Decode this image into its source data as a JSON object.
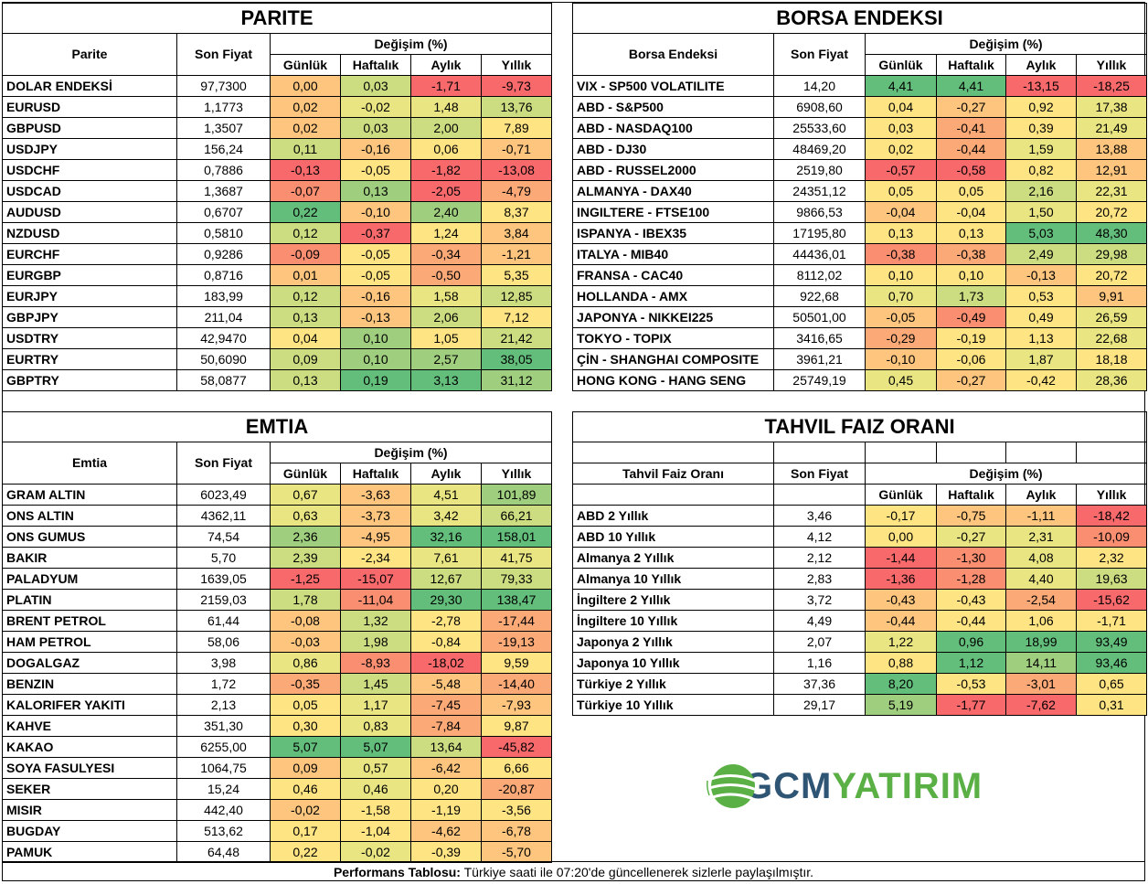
{
  "palette": {
    "R": "#F8696B",
    "R2": "#F98E71",
    "O": "#FBA977",
    "O2": "#FDC57D",
    "Y": "#FFE483",
    "YG": "#E8E582",
    "LG": "#CBDC81",
    "G": "#9FCF7E",
    "DG": "#63BE7B"
  },
  "common": {
    "son_fiyat": "Son Fiyat",
    "degisim": "Değişim (%)",
    "gunluk": "Günlük",
    "haftalik": "Haftalık",
    "aylik": "Aylık",
    "yillik": "Yıllık"
  },
  "parite": {
    "title": "PARITE",
    "col_name": "Parite",
    "rows": [
      {
        "name": "DOLAR ENDEKSİ",
        "price": "97,7300",
        "v": [
          "0,00",
          "0,03",
          "-1,71",
          "-9,73"
        ],
        "c": [
          "O2",
          "LG",
          "R",
          "R"
        ]
      },
      {
        "name": "EURUSD",
        "price": "1,1773",
        "v": [
          "0,02",
          "-0,02",
          "1,48",
          "13,76"
        ],
        "c": [
          "O2",
          "YG",
          "YG",
          "LG"
        ]
      },
      {
        "name": "GBPUSD",
        "price": "1,3507",
        "v": [
          "0,02",
          "0,03",
          "2,00",
          "7,89"
        ],
        "c": [
          "O2",
          "LG",
          "LG",
          "Y"
        ]
      },
      {
        "name": "USDJPY",
        "price": "156,24",
        "v": [
          "0,11",
          "-0,16",
          "0,06",
          "-0,71"
        ],
        "c": [
          "LG",
          "O2",
          "Y",
          "O2"
        ]
      },
      {
        "name": "USDCHF",
        "price": "0,7886",
        "v": [
          "-0,13",
          "-0,05",
          "-1,82",
          "-13,08"
        ],
        "c": [
          "R",
          "Y",
          "R",
          "R"
        ]
      },
      {
        "name": "USDCAD",
        "price": "1,3687",
        "v": [
          "-0,07",
          "0,13",
          "-2,05",
          "-4,79"
        ],
        "c": [
          "R2",
          "G",
          "R",
          "O"
        ]
      },
      {
        "name": "AUDUSD",
        "price": "0,6707",
        "v": [
          "0,22",
          "-0,10",
          "2,40",
          "8,37"
        ],
        "c": [
          "DG",
          "O2",
          "G",
          "Y"
        ]
      },
      {
        "name": "NZDUSD",
        "price": "0,5810",
        "v": [
          "0,12",
          "-0,37",
          "1,24",
          "3,84"
        ],
        "c": [
          "LG",
          "R",
          "Y",
          "O2"
        ]
      },
      {
        "name": "EURCHF",
        "price": "0,9286",
        "v": [
          "-0,09",
          "-0,05",
          "-0,34",
          "-1,21"
        ],
        "c": [
          "R2",
          "Y",
          "O",
          "O2"
        ]
      },
      {
        "name": "EURGBP",
        "price": "0,8716",
        "v": [
          "0,01",
          "-0,05",
          "-0,50",
          "5,35"
        ],
        "c": [
          "O2",
          "Y",
          "O",
          "Y"
        ]
      },
      {
        "name": "EURJPY",
        "price": "183,99",
        "v": [
          "0,12",
          "-0,16",
          "1,58",
          "12,85"
        ],
        "c": [
          "LG",
          "O2",
          "YG",
          "LG"
        ]
      },
      {
        "name": "GBPJPY",
        "price": "211,04",
        "v": [
          "0,13",
          "-0,13",
          "2,06",
          "7,12"
        ],
        "c": [
          "LG",
          "O2",
          "LG",
          "Y"
        ]
      },
      {
        "name": "USDTRY",
        "price": "42,9470",
        "v": [
          "0,04",
          "0,10",
          "1,05",
          "21,42"
        ],
        "c": [
          "Y",
          "G",
          "Y",
          "LG"
        ]
      },
      {
        "name": "EURTRY",
        "price": "50,6090",
        "v": [
          "0,09",
          "0,10",
          "2,57",
          "38,05"
        ],
        "c": [
          "LG",
          "G",
          "G",
          "DG"
        ]
      },
      {
        "name": "GBPTRY",
        "price": "58,0877",
        "v": [
          "0,13",
          "0,19",
          "3,13",
          "31,12"
        ],
        "c": [
          "LG",
          "DG",
          "DG",
          "G"
        ]
      }
    ]
  },
  "borsa": {
    "title": "BORSA ENDEKSI",
    "col_name": "Borsa Endeksi",
    "rows": [
      {
        "name": "VIX  - SP500 VOLATILITE",
        "price": "14,20",
        "v": [
          "4,41",
          "4,41",
          "-13,15",
          "-18,25"
        ],
        "c": [
          "DG",
          "DG",
          "R",
          "R"
        ]
      },
      {
        "name": "ABD - S&P500",
        "price": "6908,60",
        "v": [
          "0,04",
          "-0,27",
          "0,92",
          "17,38"
        ],
        "c": [
          "Y",
          "O2",
          "Y",
          "YG"
        ]
      },
      {
        "name": "ABD - NASDAQ100",
        "price": "25533,60",
        "v": [
          "0,03",
          "-0,41",
          "0,39",
          "21,49"
        ],
        "c": [
          "Y",
          "O",
          "Y",
          "YG"
        ]
      },
      {
        "name": "ABD - DJ30",
        "price": "48469,20",
        "v": [
          "0,02",
          "-0,44",
          "1,59",
          "13,88"
        ],
        "c": [
          "Y",
          "O",
          "YG",
          "O2"
        ]
      },
      {
        "name": "ABD - RUSSEL2000",
        "price": "2519,80",
        "v": [
          "-0,57",
          "-0,58",
          "0,82",
          "12,91"
        ],
        "c": [
          "R",
          "R",
          "Y",
          "O2"
        ]
      },
      {
        "name": "ALMANYA - DAX40",
        "price": "24351,12",
        "v": [
          "0,05",
          "0,05",
          "2,16",
          "22,31"
        ],
        "c": [
          "Y",
          "Y",
          "LG",
          "YG"
        ]
      },
      {
        "name": "INGILTERE - FTSE100",
        "price": "9866,53",
        "v": [
          "-0,04",
          "-0,04",
          "1,50",
          "20,72"
        ],
        "c": [
          "O2",
          "Y",
          "YG",
          "Y"
        ]
      },
      {
        "name": "ISPANYA - IBEX35",
        "price": "17195,80",
        "v": [
          "0,13",
          "0,13",
          "5,03",
          "48,30"
        ],
        "c": [
          "Y",
          "Y",
          "DG",
          "DG"
        ]
      },
      {
        "name": "ITALYA - MIB40",
        "price": "44436,01",
        "v": [
          "-0,38",
          "-0,38",
          "2,49",
          "29,98"
        ],
        "c": [
          "R2",
          "O",
          "LG",
          "LG"
        ]
      },
      {
        "name": "FRANSA - CAC40",
        "price": "8112,02",
        "v": [
          "0,10",
          "0,10",
          "-0,13",
          "20,72"
        ],
        "c": [
          "Y",
          "Y",
          "O2",
          "Y"
        ]
      },
      {
        "name": "HOLLANDA - AMX",
        "price": "922,68",
        "v": [
          "0,70",
          "1,73",
          "0,53",
          "9,91"
        ],
        "c": [
          "YG",
          "LG",
          "Y",
          "O2"
        ]
      },
      {
        "name": "JAPONYA - NIKKEI225",
        "price": "50501,00",
        "v": [
          "-0,05",
          "-0,49",
          "0,49",
          "26,59"
        ],
        "c": [
          "O2",
          "R2",
          "Y",
          "YG"
        ]
      },
      {
        "name": "TOKYO - TOPIX",
        "price": "3416,65",
        "v": [
          "-0,29",
          "-0,19",
          "1,13",
          "22,68"
        ],
        "c": [
          "O",
          "Y",
          "Y",
          "YG"
        ]
      },
      {
        "name": "ÇİN - SHANGHAI COMPOSITE",
        "price": "3961,21",
        "v": [
          "-0,10",
          "-0,06",
          "1,87",
          "18,18"
        ],
        "c": [
          "O2",
          "Y",
          "YG",
          "Y"
        ]
      },
      {
        "name": "HONG KONG - HANG SENG",
        "price": "25749,19",
        "v": [
          "0,45",
          "-0,27",
          "-0,42",
          "28,36"
        ],
        "c": [
          "YG",
          "O2",
          "Y",
          "YG"
        ]
      }
    ]
  },
  "emtia": {
    "title": "EMTIA",
    "col_name": "Emtia",
    "rows": [
      {
        "name": "GRAM ALTIN",
        "price": "6023,49",
        "v": [
          "0,67",
          "-3,63",
          "4,51",
          "101,89"
        ],
        "c": [
          "YG",
          "O2",
          "YG",
          "G"
        ]
      },
      {
        "name": "ONS ALTIN",
        "price": "4362,11",
        "v": [
          "0,63",
          "-3,73",
          "3,42",
          "66,21"
        ],
        "c": [
          "YG",
          "O2",
          "YG",
          "LG"
        ]
      },
      {
        "name": "ONS GUMUS",
        "price": "74,54",
        "v": [
          "2,36",
          "-4,95",
          "32,16",
          "158,01"
        ],
        "c": [
          "G",
          "O2",
          "DG",
          "DG"
        ]
      },
      {
        "name": "BAKIR",
        "price": "5,70",
        "v": [
          "2,39",
          "-2,34",
          "7,61",
          "41,75"
        ],
        "c": [
          "LG",
          "Y",
          "YG",
          "YG"
        ]
      },
      {
        "name": "PALADYUM",
        "price": "1639,05",
        "v": [
          "-1,25",
          "-15,07",
          "12,67",
          "79,33"
        ],
        "c": [
          "R",
          "R",
          "LG",
          "LG"
        ]
      },
      {
        "name": "PLATIN",
        "price": "2159,03",
        "v": [
          "1,78",
          "-11,04",
          "29,30",
          "138,47"
        ],
        "c": [
          "LG",
          "R2",
          "DG",
          "DG"
        ]
      },
      {
        "name": "BRENT PETROL",
        "price": "61,44",
        "v": [
          "-0,08",
          "1,32",
          "-2,78",
          "-17,44"
        ],
        "c": [
          "O2",
          "LG",
          "Y",
          "O"
        ]
      },
      {
        "name": "HAM PETROL",
        "price": "58,06",
        "v": [
          "-0,03",
          "1,98",
          "-0,84",
          "-19,13"
        ],
        "c": [
          "O2",
          "LG",
          "Y",
          "O"
        ]
      },
      {
        "name": "DOGALGAZ",
        "price": "3,98",
        "v": [
          "0,86",
          "-8,93",
          "-18,02",
          "9,59"
        ],
        "c": [
          "YG",
          "R2",
          "R",
          "Y"
        ]
      },
      {
        "name": "BENZIN",
        "price": "1,72",
        "v": [
          "-0,35",
          "1,45",
          "-5,48",
          "-14,40"
        ],
        "c": [
          "O",
          "LG",
          "O2",
          "O"
        ]
      },
      {
        "name": "KALORIFER YAKITI",
        "price": "2,13",
        "v": [
          "0,05",
          "1,17",
          "-7,45",
          "-7,93"
        ],
        "c": [
          "Y",
          "YG",
          "O",
          "O2"
        ]
      },
      {
        "name": "KAHVE",
        "price": "351,30",
        "v": [
          "0,30",
          "0,83",
          "-7,84",
          "9,87"
        ],
        "c": [
          "Y",
          "YG",
          "O",
          "Y"
        ]
      },
      {
        "name": "KAKAO",
        "price": "6255,00",
        "v": [
          "5,07",
          "5,07",
          "13,64",
          "-45,82"
        ],
        "c": [
          "DG",
          "DG",
          "LG",
          "R"
        ]
      },
      {
        "name": "SOYA FASULYESI",
        "price": "1064,75",
        "v": [
          "0,09",
          "0,57",
          "-6,42",
          "6,66"
        ],
        "c": [
          "O2",
          "YG",
          "O2",
          "Y"
        ]
      },
      {
        "name": "SEKER",
        "price": "15,24",
        "v": [
          "0,46",
          "0,46",
          "0,20",
          "-20,87"
        ],
        "c": [
          "Y",
          "YG",
          "Y",
          "O"
        ]
      },
      {
        "name": "MISIR",
        "price": "442,40",
        "v": [
          "-0,02",
          "-1,58",
          "-1,19",
          "-3,56"
        ],
        "c": [
          "O2",
          "Y",
          "Y",
          "Y"
        ]
      },
      {
        "name": "BUGDAY",
        "price": "513,62",
        "v": [
          "0,17",
          "-1,04",
          "-4,62",
          "-6,78"
        ],
        "c": [
          "Y",
          "Y",
          "O2",
          "O2"
        ]
      },
      {
        "name": "PAMUK",
        "price": "64,48",
        "v": [
          "0,22",
          "-0,02",
          "-0,39",
          "-5,70"
        ],
        "c": [
          "Y",
          "YG",
          "Y",
          "O2"
        ]
      }
    ]
  },
  "tahvil": {
    "title": "TAHVIL FAIZ ORANI",
    "col_name": "Tahvil Faiz Oranı",
    "rows": [
      {
        "name": "ABD 2 Yıllık",
        "price": "3,46",
        "v": [
          "-0,17",
          "-0,75",
          "-1,11",
          "-18,42"
        ],
        "c": [
          "Y",
          "O2",
          "O2",
          "R"
        ]
      },
      {
        "name": "ABD 10 Yıllık",
        "price": "4,12",
        "v": [
          "0,00",
          "-0,27",
          "2,31",
          "-10,09"
        ],
        "c": [
          "Y",
          "YG",
          "YG",
          "R2"
        ]
      },
      {
        "name": "Almanya 2 Yıllık",
        "price": "2,12",
        "v": [
          "-1,44",
          "-1,30",
          "4,08",
          "2,32"
        ],
        "c": [
          "R",
          "R2",
          "YG",
          "Y"
        ]
      },
      {
        "name": "Almanya 10 Yıllık",
        "price": "2,83",
        "v": [
          "-1,36",
          "-1,28",
          "4,40",
          "19,63"
        ],
        "c": [
          "R",
          "R2",
          "YG",
          "LG"
        ]
      },
      {
        "name": "İngiltere 2 Yıllık",
        "price": "3,72",
        "v": [
          "-0,43",
          "-0,43",
          "-2,54",
          "-15,62"
        ],
        "c": [
          "O2",
          "Y",
          "O",
          "R"
        ]
      },
      {
        "name": "İngiltere 10 Yıllık",
        "price": "4,49",
        "v": [
          "-0,44",
          "-0,44",
          "1,06",
          "-1,71"
        ],
        "c": [
          "O2",
          "Y",
          "Y",
          "Y"
        ]
      },
      {
        "name": "Japonya 2 Yıllık",
        "price": "2,07",
        "v": [
          "1,22",
          "0,96",
          "18,99",
          "93,49"
        ],
        "c": [
          "YG",
          "DG",
          "DG",
          "DG"
        ]
      },
      {
        "name": "Japonya 10 Yıllık",
        "price": "1,16",
        "v": [
          "0,88",
          "1,12",
          "14,11",
          "93,46"
        ],
        "c": [
          "Y",
          "DG",
          "G",
          "DG"
        ]
      },
      {
        "name": "Türkiye 2 Yıllık",
        "price": "37,36",
        "v": [
          "8,20",
          "-0,53",
          "-3,01",
          "0,65"
        ],
        "c": [
          "DG",
          "Y",
          "O",
          "Y"
        ]
      },
      {
        "name": "Türkiye 10 Yıllık",
        "price": "29,17",
        "v": [
          "5,19",
          "-1,77",
          "-7,62",
          "0,31"
        ],
        "c": [
          "G",
          "R",
          "R",
          "Y"
        ]
      }
    ]
  },
  "logo": {
    "gcm": "GCM",
    "yatirim": "YATIRIM"
  },
  "footer": {
    "label": "Performans Tablosu:",
    "text": " Türkiye saati ile 07:20'de güncellenerek sizlerle paylaşılmıştır."
  }
}
